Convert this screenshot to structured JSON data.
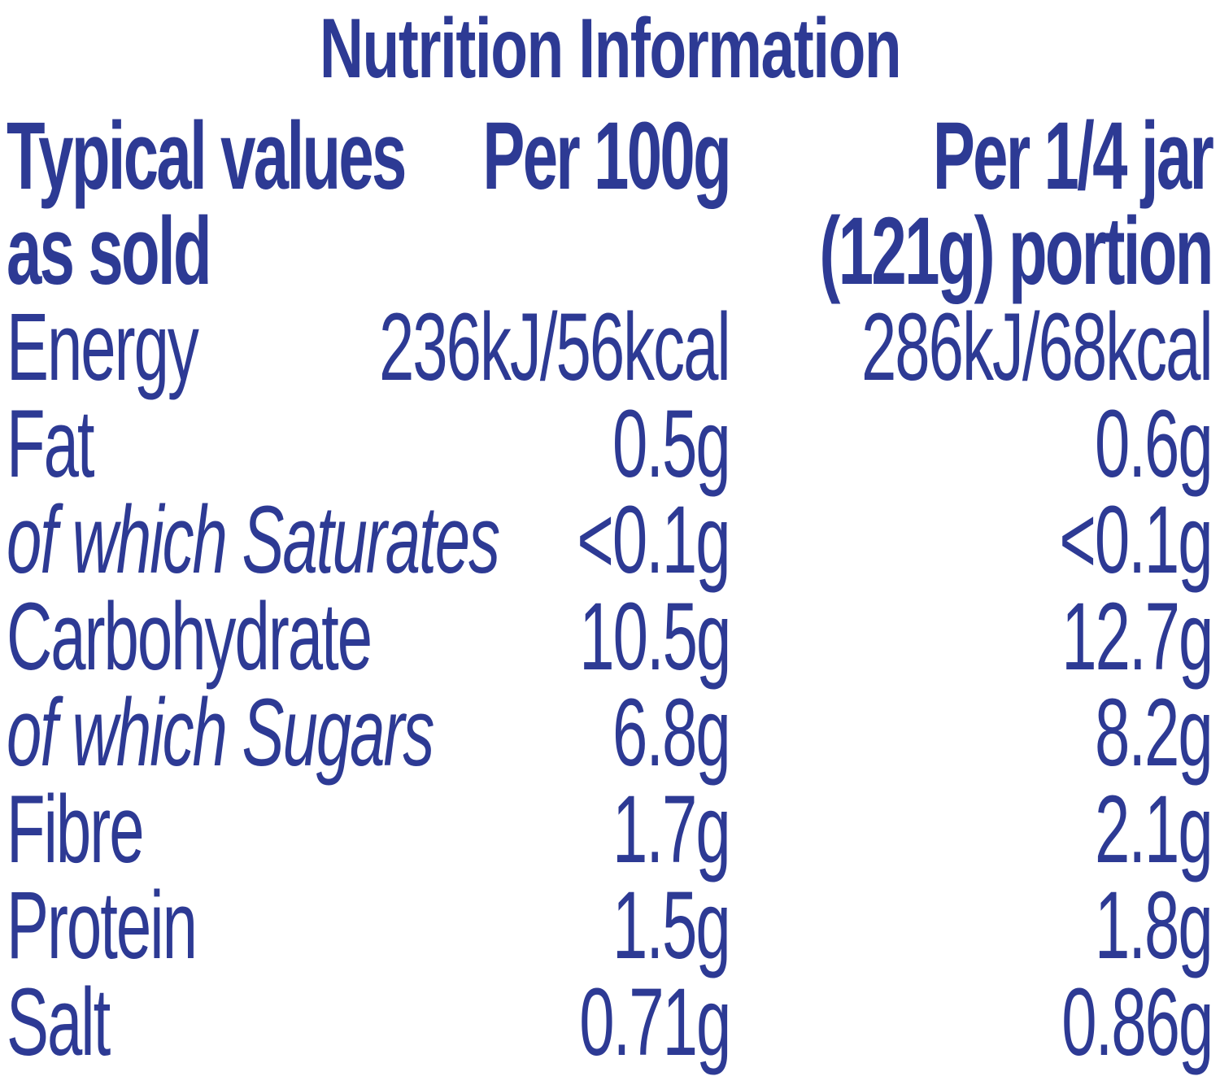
{
  "title": "Nutrition Information",
  "header": {
    "row1": [
      "Typical values",
      "Per 100g",
      "Per 1/4 jar"
    ],
    "row2": [
      "as sold",
      "",
      "(121g) portion"
    ]
  },
  "rows": [
    {
      "label": "Energy",
      "per100g": "236kJ/56kcal",
      "perPortion": "286kJ/68kcal",
      "italic": false
    },
    {
      "label": "Fat",
      "per100g": "0.5g",
      "perPortion": "0.6g",
      "italic": false
    },
    {
      "label": "of which Saturates",
      "per100g": "<0.1g",
      "perPortion": "<0.1g",
      "italic": true
    },
    {
      "label": "Carbohydrate",
      "per100g": "10.5g",
      "perPortion": "12.7g",
      "italic": false
    },
    {
      "label": "of which Sugars",
      "per100g": "6.8g",
      "perPortion": "8.2g",
      "italic": true
    },
    {
      "label": "Fibre",
      "per100g": "1.7g",
      "perPortion": "2.1g",
      "italic": false
    },
    {
      "label": "Protein",
      "per100g": "1.5g",
      "perPortion": "1.8g",
      "italic": false
    },
    {
      "label": "Salt",
      "per100g": "0.71g",
      "perPortion": "0.86g",
      "italic": false
    }
  ],
  "colors": {
    "text": "#2d3a94",
    "background": "#ffffff"
  }
}
